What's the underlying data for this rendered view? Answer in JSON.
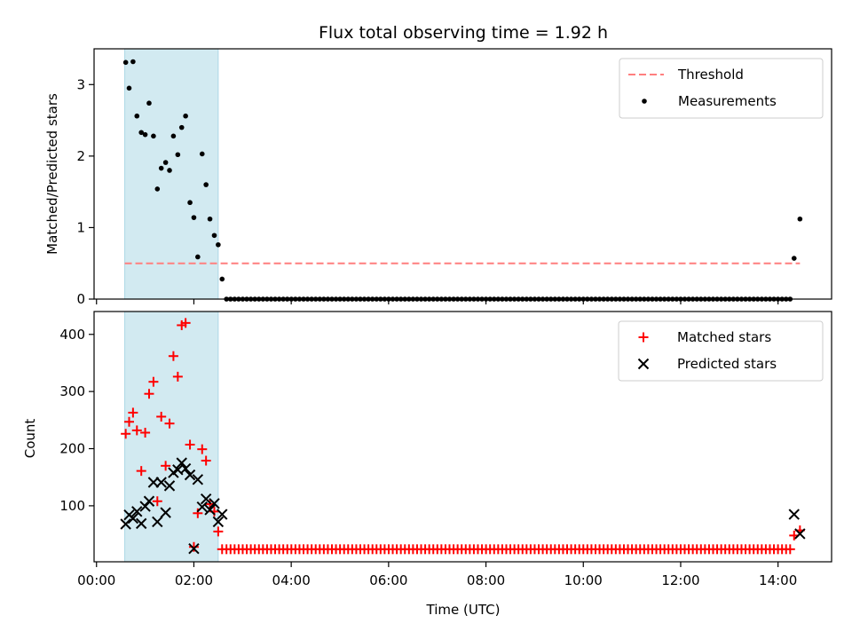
{
  "chart_data": {
    "type": "scatter",
    "title": "Flux total observing time = 1.92 h",
    "xlabel": "Time (UTC)",
    "x_unit": "hours since 00:00 UTC",
    "xlim": [
      -0.05,
      15.1
    ],
    "xticks": [
      {
        "value": 0,
        "label": "00:00"
      },
      {
        "value": 2,
        "label": "02:00"
      },
      {
        "value": 4,
        "label": "04:00"
      },
      {
        "value": 6,
        "label": "06:00"
      },
      {
        "value": 8,
        "label": "08:00"
      },
      {
        "value": 10,
        "label": "10:00"
      },
      {
        "value": 12,
        "label": "12:00"
      },
      {
        "value": 14,
        "label": "14:00"
      }
    ],
    "observing_window": {
      "start": 0.58,
      "end": 2.5,
      "color": "#add8e6"
    },
    "panels": [
      {
        "ylabel": "Matched/Predicted stars",
        "ylim": [
          0,
          3.5
        ],
        "yticks": [
          0,
          1,
          2,
          3
        ],
        "threshold": {
          "name": "Threshold",
          "value": 0.5,
          "x_range": [
            0.58,
            14.45
          ],
          "color": "#ff7f7f"
        },
        "series": [
          {
            "name": "Measurements",
            "marker": "dot",
            "color": "#000000",
            "x": [
              0.6,
              0.67,
              0.75,
              0.83,
              0.92,
              1.0,
              1.08,
              1.17,
              1.25,
              1.33,
              1.42,
              1.5,
              1.58,
              1.67,
              1.75,
              1.83,
              1.92,
              2.0,
              2.08,
              2.17,
              2.25,
              2.33,
              2.42,
              2.5,
              2.58,
              14.33,
              14.45
            ],
            "y": [
              3.31,
              2.95,
              3.32,
              2.56,
              2.33,
              2.3,
              2.74,
              2.28,
              1.54,
              1.83,
              1.91,
              1.8,
              2.28,
              2.02,
              2.4,
              2.56,
              1.35,
              1.14,
              0.59,
              2.03,
              1.6,
              1.12,
              0.89,
              0.76,
              0.28,
              0.57,
              1.12
            ]
          }
        ],
        "zero_run": {
          "start": 2.67,
          "end": 14.25,
          "step": 0.0833,
          "value": 0
        }
      },
      {
        "ylabel": "Count",
        "ylim": [
          2,
          440
        ],
        "yticks": [
          100,
          200,
          300,
          400
        ],
        "series": [
          {
            "name": "Matched stars",
            "marker": "plus",
            "color": "#ff0000",
            "x": [
              0.6,
              0.67,
              0.75,
              0.83,
              0.92,
              1.0,
              1.08,
              1.17,
              1.25,
              1.33,
              1.42,
              1.5,
              1.58,
              1.67,
              1.75,
              1.83,
              1.92,
              2.0,
              2.08,
              2.17,
              2.25,
              2.33,
              2.42,
              2.5,
              2.58,
              14.33,
              14.45
            ],
            "y": [
              226,
              247,
              263,
              232,
              161,
              228,
              296,
              317,
              108,
              256,
              170,
              244,
              362,
              326,
              416,
              420,
              207,
              28,
              87,
              199,
              179,
              103,
              90,
              55,
              24,
              48,
              57
            ]
          },
          {
            "name": "Predicted stars",
            "marker": "x",
            "color": "#000000",
            "x": [
              0.6,
              0.67,
              0.75,
              0.83,
              0.92,
              1.0,
              1.08,
              1.17,
              1.25,
              1.33,
              1.42,
              1.5,
              1.58,
              1.67,
              1.75,
              1.83,
              1.92,
              2.0,
              2.08,
              2.17,
              2.25,
              2.33,
              2.42,
              2.5,
              2.58,
              14.33,
              14.45
            ],
            "y": [
              68,
              84,
              78,
              90,
              69,
              99,
              108,
              141,
              72,
              141,
              88,
              135,
              158,
              163,
              175,
              165,
              154,
              25,
              146,
              98,
              112,
              93,
              104,
              72,
              85,
              85,
              51
            ]
          }
        ],
        "zero_run": {
          "start": 2.67,
          "end": 14.25,
          "step": 0.0833,
          "value": 24,
          "series": "Matched stars"
        }
      }
    ],
    "legends": [
      {
        "panel": 0,
        "placement": "top-right",
        "entries": [
          "Threshold",
          "Measurements"
        ]
      },
      {
        "panel": 1,
        "placement": "top-right",
        "entries": [
          "Matched stars",
          "Predicted stars"
        ]
      }
    ]
  }
}
